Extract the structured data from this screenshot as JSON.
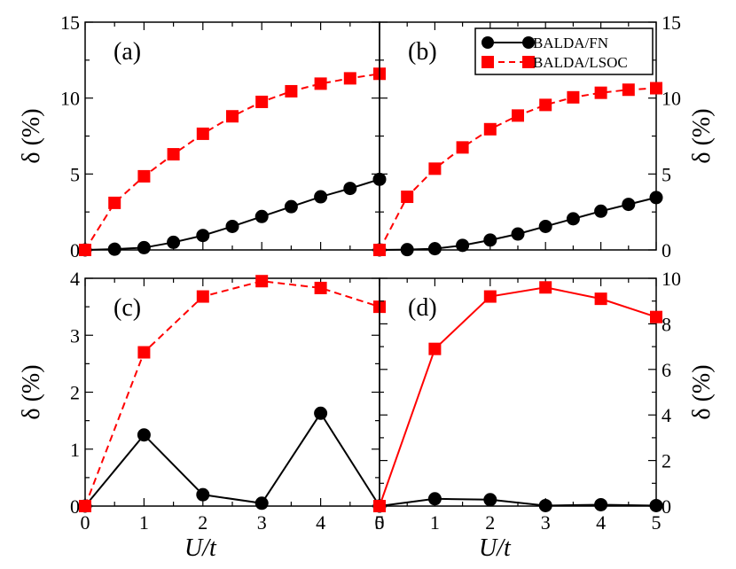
{
  "figure": {
    "colors": {
      "fn": "#000000",
      "lsoc": "#ff0000"
    },
    "legend": {
      "fn_label": "BALDA/FN",
      "lsoc_label": "BALDA/LSOC",
      "placement": "top-right of panel (b)"
    },
    "xlabel": "U/t",
    "ylabel": "δ (%)"
  },
  "chart_data": [
    {
      "type": "line",
      "panel": "(a)",
      "xlim": [
        0,
        5
      ],
      "ylim": [
        0,
        15
      ],
      "xticks": [
        "0",
        "1",
        "2",
        "3",
        "4",
        "5"
      ],
      "yticks": [
        "0",
        "5",
        "10",
        "15"
      ],
      "ytick_values": [
        0,
        5,
        10,
        15
      ],
      "ylabel": "δ (%)",
      "ylabel_side": "left",
      "series": [
        {
          "name": "BALDA/FN",
          "style": "solid",
          "marker": "circle",
          "x": [
            0,
            0.5,
            1,
            1.5,
            2,
            2.5,
            3,
            3.5,
            4,
            4.5,
            5
          ],
          "y": [
            0,
            0.05,
            0.15,
            0.5,
            0.95,
            1.55,
            2.2,
            2.85,
            3.5,
            4.05,
            4.65
          ]
        },
        {
          "name": "BALDA/LSOC",
          "style": "dashed",
          "marker": "square",
          "x": [
            0,
            0.5,
            1,
            1.5,
            2,
            2.5,
            3,
            3.5,
            4,
            4.5,
            5
          ],
          "y": [
            0,
            3.1,
            4.85,
            6.3,
            7.65,
            8.8,
            9.75,
            10.45,
            10.95,
            11.3,
            11.6
          ]
        }
      ]
    },
    {
      "type": "line",
      "panel": "(b)",
      "xlim": [
        0,
        5
      ],
      "ylim": [
        0,
        15
      ],
      "xticks": [
        "0",
        "1",
        "2",
        "3",
        "4",
        "5"
      ],
      "yticks": [
        "0",
        "5",
        "10",
        "15"
      ],
      "ytick_values": [
        0,
        5,
        10,
        15
      ],
      "ylabel": "δ (%)",
      "ylabel_side": "right",
      "series": [
        {
          "name": "BALDA/FN",
          "style": "solid",
          "marker": "circle",
          "x": [
            0,
            0.5,
            1,
            1.5,
            2,
            2.5,
            3,
            3.5,
            4,
            4.5,
            5
          ],
          "y": [
            0,
            0.02,
            0.08,
            0.3,
            0.65,
            1.05,
            1.55,
            2.05,
            2.55,
            3.0,
            3.45
          ]
        },
        {
          "name": "BALDA/LSOC",
          "style": "dashed",
          "marker": "square",
          "x": [
            0,
            0.5,
            1,
            1.5,
            2,
            2.5,
            3,
            3.5,
            4,
            4.5,
            5
          ],
          "y": [
            0,
            3.5,
            5.35,
            6.75,
            7.95,
            8.85,
            9.55,
            10.05,
            10.35,
            10.55,
            10.65
          ]
        }
      ]
    },
    {
      "type": "line",
      "panel": "(c)",
      "xlim": [
        0,
        5
      ],
      "ylim": [
        0,
        4
      ],
      "xticks": [
        "0",
        "1",
        "2",
        "3",
        "4",
        "5"
      ],
      "yticks": [
        "0",
        "1",
        "2",
        "3",
        "4"
      ],
      "ytick_values": [
        0,
        1,
        2,
        3,
        4
      ],
      "ylabel": "δ (%)",
      "ylabel_side": "left",
      "series": [
        {
          "name": "BALDA/FN",
          "style": "solid",
          "marker": "circle",
          "x": [
            0,
            1,
            2,
            3,
            4,
            5
          ],
          "y": [
            0,
            1.25,
            0.2,
            0.05,
            1.63,
            0
          ]
        },
        {
          "name": "BALDA/LSOC",
          "style": "dashed",
          "marker": "square",
          "x": [
            0,
            1,
            2,
            3,
            4,
            5
          ],
          "y": [
            0,
            2.7,
            3.68,
            3.95,
            3.83,
            3.5
          ]
        }
      ]
    },
    {
      "type": "line",
      "panel": "(d)",
      "xlim": [
        0,
        5
      ],
      "ylim": [
        0,
        10
      ],
      "xticks": [
        "0",
        "1",
        "2",
        "3",
        "4",
        "5"
      ],
      "yticks": [
        "0",
        "2",
        "4",
        "6",
        "8",
        "10"
      ],
      "ytick_values": [
        0,
        2,
        4,
        6,
        8,
        10
      ],
      "ylabel": "δ (%)",
      "ylabel_side": "right",
      "series": [
        {
          "name": "BALDA/FN",
          "style": "solid",
          "marker": "circle",
          "x": [
            0,
            1,
            2,
            3,
            4,
            5
          ],
          "y": [
            0,
            0.32,
            0.28,
            0.02,
            0.06,
            0.02
          ]
        },
        {
          "name": "BALDA/LSOC",
          "style": "solid",
          "marker": "square",
          "x": [
            0,
            1,
            2,
            3,
            4,
            5
          ],
          "y": [
            0,
            6.9,
            9.2,
            9.6,
            9.1,
            8.3
          ]
        }
      ]
    }
  ]
}
